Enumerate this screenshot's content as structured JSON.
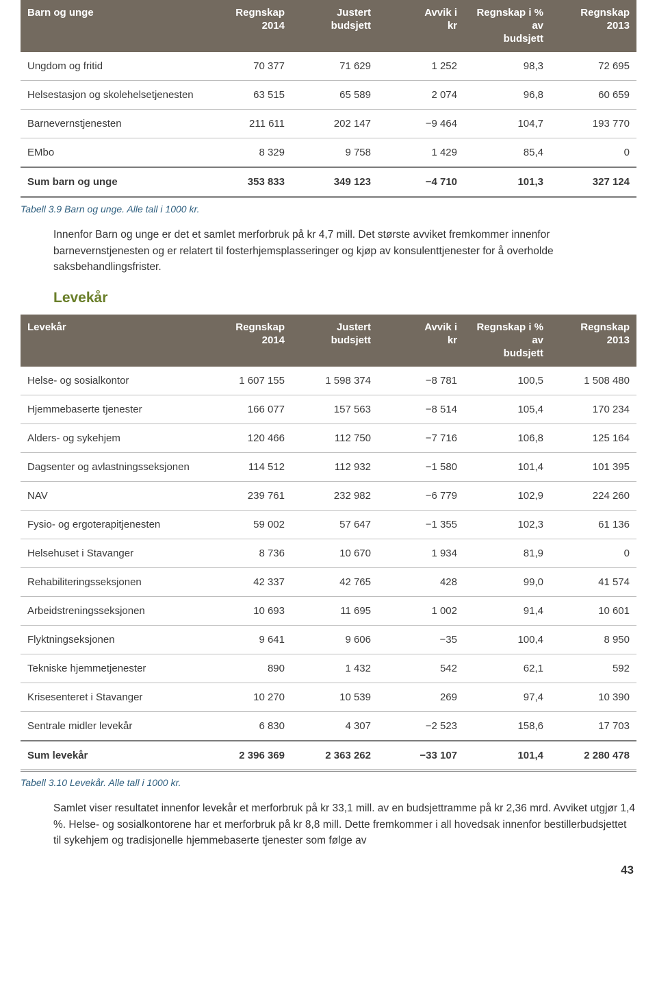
{
  "table1": {
    "headers": [
      "Barn og unge",
      "Regnskap\n2014",
      "Justert\nbudsjett",
      "Avvik i\nkr",
      "Regnskap i % av\nbudsjett",
      "Regnskap\n2013"
    ],
    "rows": [
      [
        "Ungdom og fritid",
        "70 377",
        "71 629",
        "1 252",
        "98,3",
        "72 695"
      ],
      [
        "Helsestasjon og skolehelsetjenesten",
        "63 515",
        "65 589",
        "2 074",
        "96,8",
        "60 659"
      ],
      [
        "Barnevernstjenesten",
        "211 611",
        "202 147",
        "−9 464",
        "104,7",
        "193 770"
      ],
      [
        "EMbo",
        "8 329",
        "9 758",
        "1 429",
        "85,4",
        "0"
      ]
    ],
    "sum": [
      "Sum barn og unge",
      "353 833",
      "349 123",
      "−4 710",
      "101,3",
      "327 124"
    ]
  },
  "caption1": "Tabell 3.9 Barn og unge. Alle tall i 1000 kr.",
  "para1": "Innenfor Barn og unge er det et samlet merforbruk på kr 4,7 mill. Det største avviket fremkommer innenfor barnevernstjenesten og er relatert til fosterhjemsplasseringer og kjøp av konsulenttjenester for å overholde saksbehandlingsfrister.",
  "heading2": "Levekår",
  "table2": {
    "headers": [
      "Levekår",
      "Regnskap\n2014",
      "Justert\nbudsjett",
      "Avvik i\nkr",
      "Regnskap i % av\nbudsjett",
      "Regnskap\n2013"
    ],
    "rows": [
      [
        "Helse- og sosialkontor",
        "1 607 155",
        "1 598 374",
        "−8 781",
        "100,5",
        "1 508 480"
      ],
      [
        "Hjemmebaserte tjenester",
        "166 077",
        "157 563",
        "−8 514",
        "105,4",
        "170 234"
      ],
      [
        "Alders- og sykehjem",
        "120 466",
        "112 750",
        "−7 716",
        "106,8",
        "125 164"
      ],
      [
        "Dagsenter og avlastningsseksjonen",
        "114 512",
        "112 932",
        "−1 580",
        "101,4",
        "101 395"
      ],
      [
        "NAV",
        "239 761",
        "232 982",
        "−6 779",
        "102,9",
        "224 260"
      ],
      [
        "Fysio- og ergoterapitjenesten",
        "59 002",
        "57 647",
        "−1 355",
        "102,3",
        "61 136"
      ],
      [
        "Helsehuset i Stavanger",
        "8 736",
        "10 670",
        "1 934",
        "81,9",
        "0"
      ],
      [
        "Rehabiliteringsseksjonen",
        "42 337",
        "42 765",
        "428",
        "99,0",
        "41 574"
      ],
      [
        "Arbeidstreningsseksjonen",
        "10 693",
        "11 695",
        "1 002",
        "91,4",
        "10 601"
      ],
      [
        "Flyktningseksjonen",
        "9 641",
        "9 606",
        "−35",
        "100,4",
        "8 950"
      ],
      [
        "Tekniske hjemmetjenester",
        "890",
        "1 432",
        "542",
        "62,1",
        "592"
      ],
      [
        "Krisesenteret i Stavanger",
        "10 270",
        "10 539",
        "269",
        "97,4",
        "10 390"
      ],
      [
        "Sentrale midler levekår",
        "6 830",
        "4 307",
        "−2 523",
        "158,6",
        "17 703"
      ]
    ],
    "sum": [
      "Sum levekår",
      "2 396 369",
      "2 363 262",
      "−33 107",
      "101,4",
      "2 280 478"
    ]
  },
  "caption2": "Tabell 3.10 Levekår. Alle tall i 1000 kr.",
  "para2": "Samlet viser resultatet innenfor levekår et merforbruk på kr 33,1 mill. av en budsjettramme på kr 2,36 mrd. Avviket utgjør 1,4 %. Helse- og sosialkontorene har et merforbruk på kr 8,8 mill. Dette fremkommer i all hovedsak innenfor bestillerbudsjettet til sykehjem og tradisjonelle hjemmebaserte tjenester som følge av",
  "page_number": "43"
}
